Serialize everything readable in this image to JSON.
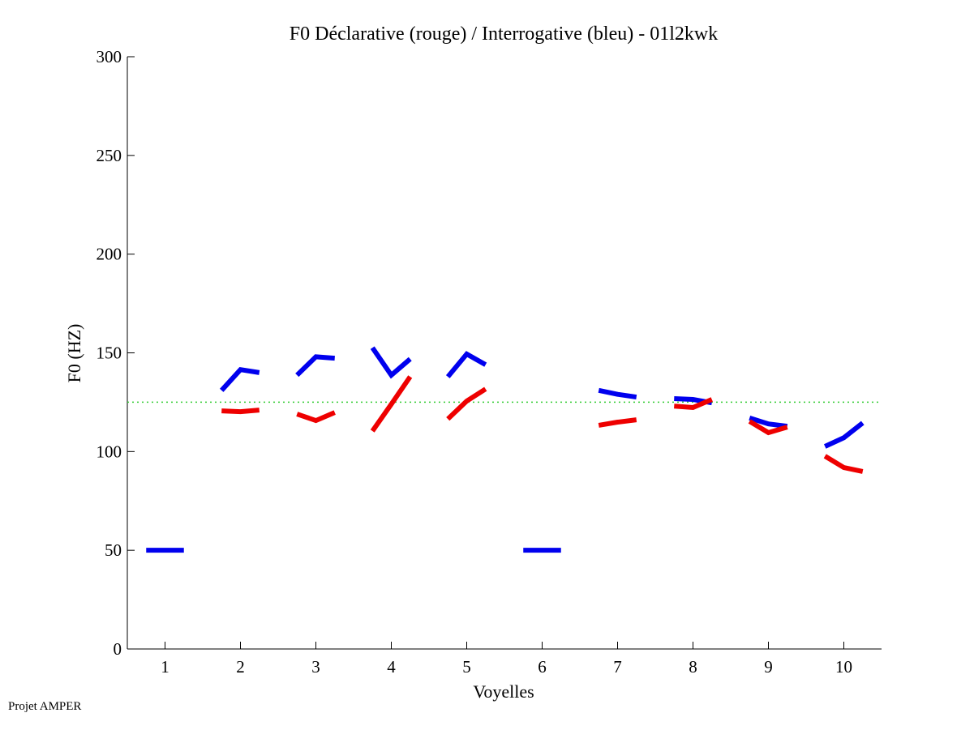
{
  "chart_data": {
    "type": "line",
    "title": "F0 Déclarative (rouge) / Interrogative (bleu) - 01l2kwk",
    "xlabel": "Voyelles",
    "ylabel": "F0 (HZ)",
    "xlim": [
      0.5,
      10.5
    ],
    "ylim": [
      0,
      300
    ],
    "xticks": [
      1,
      2,
      3,
      4,
      5,
      6,
      7,
      8,
      9,
      10
    ],
    "yticks": [
      0,
      50,
      100,
      150,
      200,
      250,
      300
    ],
    "grid": false,
    "reference_line": {
      "y": 125,
      "color": "#33cc33",
      "style": "dotted"
    },
    "series": [
      {
        "name": "Interrogative (bleu)",
        "color": "#0000ee",
        "segments": [
          {
            "vowel": 1,
            "values": [
              50,
              50,
              50
            ]
          },
          {
            "vowel": 2,
            "values": [
              131,
              141.5,
              140
            ]
          },
          {
            "vowel": 3,
            "values": [
              138.7,
              148,
              147.3
            ]
          },
          {
            "vowel": 4,
            "values": [
              152.6,
              138.7,
              146.9
            ]
          },
          {
            "vowel": 5,
            "values": [
              137.9,
              149.4,
              144
            ]
          },
          {
            "vowel": 6,
            "values": [
              50,
              50,
              50
            ]
          },
          {
            "vowel": 7,
            "values": [
              131,
              129,
              127.6
            ]
          },
          {
            "vowel": 8,
            "values": [
              126.8,
              126.4,
              124.7
            ]
          },
          {
            "vowel": 9,
            "values": [
              117,
              114,
              112.8
            ]
          },
          {
            "vowel": 10,
            "values": [
              102.6,
              107,
              114.5
            ]
          }
        ]
      },
      {
        "name": "Déclarative (rouge)",
        "color": "#ee0000",
        "segments": [
          {
            "vowel": 2,
            "values": [
              120.6,
              120.2,
              121
            ]
          },
          {
            "vowel": 3,
            "values": [
              119,
              115.7,
              119.8
            ]
          },
          {
            "vowel": 4,
            "values": [
              110.4,
              124,
              137.9
            ]
          },
          {
            "vowel": 5,
            "values": [
              116.5,
              125.6,
              131.7
            ]
          },
          {
            "vowel": 7,
            "values": [
              113.3,
              114.9,
              116.1
            ]
          },
          {
            "vowel": 8,
            "values": [
              123,
              122.3,
              126.4
            ]
          },
          {
            "vowel": 9,
            "values": [
              115.3,
              109.6,
              112.4
            ]
          },
          {
            "vowel": 10,
            "values": [
              97.7,
              91.9,
              89.9
            ]
          }
        ]
      }
    ]
  },
  "footer": "Projet AMPER"
}
